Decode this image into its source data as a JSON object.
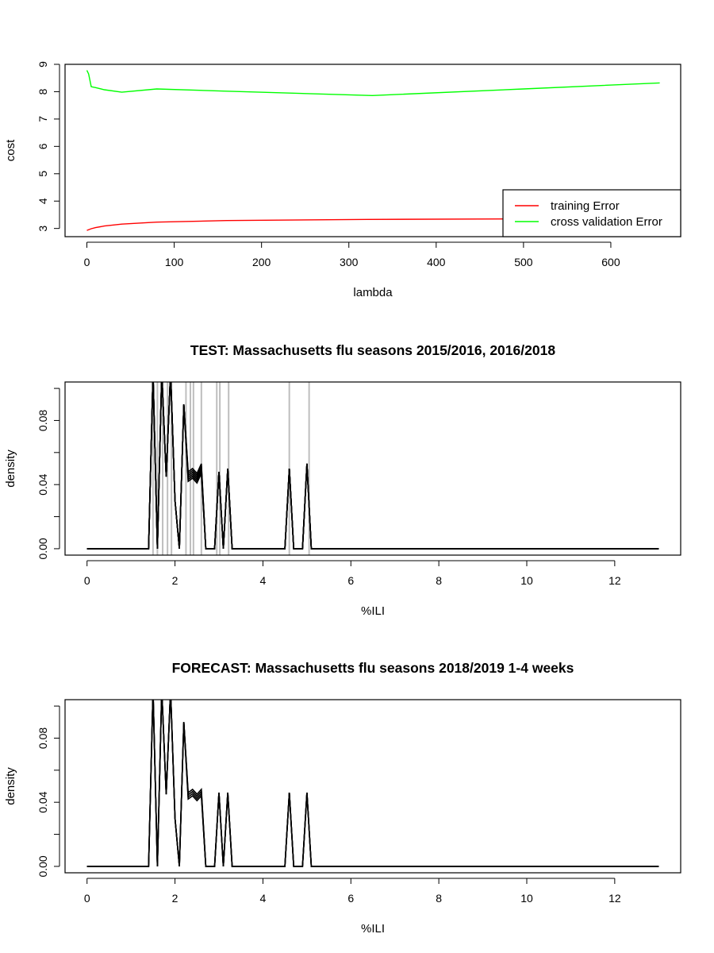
{
  "chart_data": [
    {
      "type": "line",
      "title": "",
      "xlabel": "lambda",
      "ylabel": "cost",
      "xlim": [
        -25,
        680
      ],
      "ylim": [
        2.7,
        9.0
      ],
      "x_ticks": [
        0,
        100,
        200,
        300,
        400,
        500,
        600
      ],
      "y_ticks": [
        3,
        4,
        5,
        6,
        7,
        8,
        9
      ],
      "grid": false,
      "legend_position": "bottom-right",
      "series": [
        {
          "name": "training Error",
          "color": "#ff0000",
          "x": [
            0,
            5,
            10,
            20,
            40,
            80,
            160,
            320,
            500,
            656
          ],
          "y": [
            2.93,
            2.99,
            3.03,
            3.09,
            3.16,
            3.23,
            3.29,
            3.33,
            3.35,
            3.37
          ]
        },
        {
          "name": "cross validation Error",
          "color": "#00ff00",
          "x": [
            0,
            2,
            5,
            10,
            20,
            40,
            80,
            160,
            327,
            500,
            656
          ],
          "y": [
            8.78,
            8.65,
            8.18,
            8.15,
            8.07,
            7.98,
            8.1,
            8.02,
            7.86,
            8.1,
            8.32
          ]
        }
      ]
    },
    {
      "type": "line",
      "title": "TEST: Massachusetts  flu seasons 2015/2016, 2016/2018",
      "xlabel": "%ILI",
      "ylabel": "density",
      "xlim": [
        -0.5,
        13.5
      ],
      "ylim": [
        -0.004,
        0.104
      ],
      "x_ticks": [
        0,
        2,
        4,
        6,
        8,
        10,
        12
      ],
      "y_ticks": [
        0.0,
        0.02,
        0.04,
        0.06,
        0.08,
        0.1
      ],
      "y_tick_labels": [
        "0.00",
        "",
        "0.04",
        "",
        "0.08",
        ""
      ],
      "grid": false,
      "vertical_lines": {
        "color": "#bebebe",
        "x": [
          1.5,
          1.6,
          1.72,
          1.83,
          1.92,
          2.25,
          2.35,
          2.42,
          2.6,
          2.95,
          3.02,
          3.22,
          4.6,
          5.05
        ]
      },
      "series_color": "#000000",
      "series_count": 6,
      "series_x": [
        0,
        1.4,
        1.5,
        1.6,
        1.7,
        1.8,
        1.9,
        2.0,
        2.1,
        2.2,
        2.3,
        2.4,
        2.5,
        2.6,
        2.7,
        2.9,
        3.0,
        3.1,
        3.2,
        3.3,
        4.5,
        4.6,
        4.7,
        4.9,
        5.0,
        5.1,
        13.0
      ],
      "series_y_base": [
        0,
        0,
        0.11,
        0,
        0.11,
        0.045,
        0.11,
        0.03,
        0,
        0.09,
        0.045,
        0.047,
        0.044,
        0.05,
        0,
        0,
        0.048,
        0,
        0.05,
        0,
        0,
        0.05,
        0,
        0,
        0.053,
        0,
        0
      ],
      "series_mid_spread": 0.006
    },
    {
      "type": "line",
      "title": "FORECAST: Massachusetts flu seasons 2018/2019 1-4 weeks",
      "xlabel": "%ILI",
      "ylabel": "density",
      "xlim": [
        -0.5,
        13.5
      ],
      "ylim": [
        -0.004,
        0.104
      ],
      "x_ticks": [
        0,
        2,
        4,
        6,
        8,
        10,
        12
      ],
      "y_ticks": [
        0.0,
        0.02,
        0.04,
        0.06,
        0.08,
        0.1
      ],
      "y_tick_labels": [
        "0.00",
        "",
        "0.04",
        "",
        "0.08",
        ""
      ],
      "grid": false,
      "series_color": "#000000",
      "series_count": 4,
      "series_x": [
        0,
        1.4,
        1.5,
        1.6,
        1.7,
        1.8,
        1.9,
        2.0,
        2.1,
        2.2,
        2.3,
        2.4,
        2.5,
        2.6,
        2.7,
        2.9,
        3.0,
        3.1,
        3.2,
        3.3,
        4.5,
        4.6,
        4.7,
        4.9,
        5.0,
        5.1,
        13.0
      ],
      "series_y_base": [
        0,
        0,
        0.11,
        0,
        0.11,
        0.045,
        0.11,
        0.03,
        0,
        0.09,
        0.044,
        0.046,
        0.043,
        0.046,
        0,
        0,
        0.046,
        0,
        0.046,
        0,
        0,
        0.046,
        0,
        0,
        0.046,
        0,
        0
      ],
      "series_mid_spread": 0.004
    }
  ]
}
